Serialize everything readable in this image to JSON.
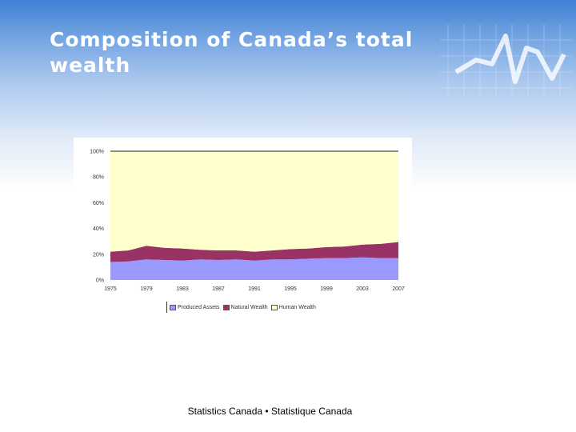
{
  "slide": {
    "title": "Composition of Canada’s total wealth",
    "footer": "Statistics Canada • Statistique Canada"
  },
  "chart_data": {
    "type": "area",
    "stacked": true,
    "percent": true,
    "x": [
      1975,
      1977,
      1979,
      1981,
      1983,
      1985,
      1987,
      1989,
      1991,
      1993,
      1995,
      1997,
      1999,
      2001,
      2003,
      2005,
      2007
    ],
    "x_tick_labels": [
      "1975",
      "1979",
      "1983",
      "1987",
      "1991",
      "1995",
      "1999",
      "2003",
      "2007"
    ],
    "x_tick_values": [
      1975,
      1979,
      1983,
      1987,
      1991,
      1995,
      1999,
      2003,
      2007
    ],
    "y_tick_labels": [
      "0%",
      "20%",
      "40%",
      "60%",
      "80%",
      "100%"
    ],
    "y_tick_values": [
      0,
      20,
      40,
      60,
      80,
      100
    ],
    "ylim": [
      0,
      100
    ],
    "series": [
      {
        "name": "Produced Assets",
        "color": "#9999ff",
        "values": [
          14,
          14.5,
          16,
          15.5,
          15,
          16,
          15.5,
          16,
          15,
          16,
          16,
          16.5,
          17,
          17,
          17.5,
          17,
          17
        ]
      },
      {
        "name": "Natural Wealth",
        "color": "#993366",
        "values": [
          8,
          8.5,
          10.5,
          9.5,
          9.5,
          7.5,
          7.5,
          7,
          7,
          7,
          8,
          8,
          8.5,
          9,
          10,
          11,
          12.5
        ]
      },
      {
        "name": "Human Wealth",
        "color": "#ffffcc",
        "values": [
          78,
          77,
          73.5,
          75,
          75.5,
          76.5,
          77,
          77,
          78,
          77,
          76,
          75.5,
          74.5,
          74,
          72.5,
          72,
          70.5
        ]
      }
    ],
    "legend_position": "bottom"
  }
}
